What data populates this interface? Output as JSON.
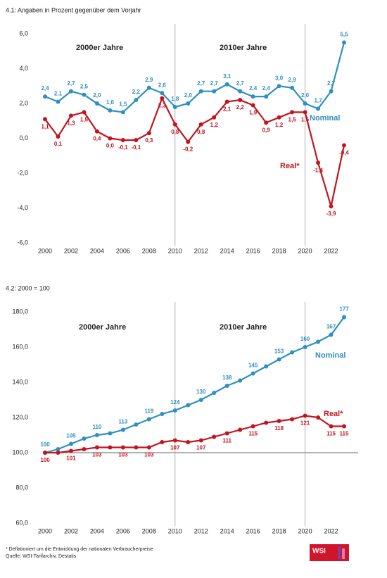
{
  "chart_data": [
    {
      "type": "line",
      "title": "4.1: Angaben in Prozent gegenüber dem Vorjahr",
      "x": [
        2000,
        2001,
        2002,
        2003,
        2004,
        2005,
        2006,
        2007,
        2008,
        2009,
        2010,
        2011,
        2012,
        2013,
        2014,
        2015,
        2016,
        2017,
        2018,
        2019,
        2020,
        2021,
        2022,
        2023
      ],
      "xlim": [
        2000,
        2023
      ],
      "xticks": [
        2000,
        2002,
        2004,
        2006,
        2008,
        2010,
        2012,
        2014,
        2016,
        2018,
        2020,
        2022
      ],
      "ylim": [
        -6,
        6
      ],
      "yticks": [
        {
          "value": -6,
          "label": "-6,0"
        },
        {
          "value": -4,
          "label": "-4,0"
        },
        {
          "value": -2,
          "label": "-2,0"
        },
        {
          "value": 0,
          "label": "0,0"
        },
        {
          "value": 2,
          "label": "2,0"
        },
        {
          "value": 4,
          "label": "4,0"
        },
        {
          "value": 6,
          "label": "6,0"
        }
      ],
      "grid": false,
      "annotations": [
        "2000er Jahre",
        "2010er Jahre",
        "Nominal",
        "Real*"
      ],
      "series": [
        {
          "name": "Nominal",
          "color": "#2e8fc1",
          "values": [
            2.4,
            2.1,
            2.7,
            2.5,
            2.0,
            1.6,
            1.5,
            2.2,
            2.9,
            2.6,
            1.8,
            2.0,
            2.7,
            2.7,
            3.1,
            2.7,
            2.4,
            2.4,
            3.0,
            2.9,
            2.0,
            1.7,
            2.7,
            5.5
          ],
          "value_labels": [
            "2,4",
            "2,1",
            "2,7",
            "2,5",
            "2,0",
            "1,6",
            "1,5",
            "2,2",
            "2,9",
            "2,6",
            "1,8",
            "2,0",
            "2,7",
            "2,7",
            "3,1",
            "2,7",
            "2,4",
            "2,4",
            "3,0",
            "2,9",
            "2,0",
            "1,7",
            "2,7",
            "5,5"
          ]
        },
        {
          "name": "Real*",
          "color": "#c3141e",
          "values": [
            1.1,
            0.1,
            1.3,
            1.5,
            0.4,
            0.0,
            -0.1,
            -0.1,
            0.3,
            2.3,
            0.8,
            -0.2,
            0.8,
            1.2,
            2.1,
            2.2,
            1.9,
            0.9,
            1.2,
            1.5,
            1.5,
            -1.4,
            -3.9,
            -0.4
          ],
          "value_labels": [
            "1,1",
            "0,1",
            "1,3",
            "1,5",
            "0,4",
            "0,0",
            "-0,1",
            "-0,1",
            "0,3",
            "2,3",
            "0,8",
            "-0,2",
            "0,8",
            "1,2",
            "2,1",
            "2,2",
            "1,9",
            "0,9",
            "1,2",
            "1,5",
            "1,5",
            "-1,4",
            "-3,9",
            "-0,4"
          ]
        }
      ]
    },
    {
      "type": "line",
      "title": "4.2: 2000 = 100",
      "x": [
        2000,
        2001,
        2002,
        2003,
        2004,
        2005,
        2006,
        2007,
        2008,
        2009,
        2010,
        2011,
        2012,
        2013,
        2014,
        2015,
        2016,
        2017,
        2018,
        2019,
        2020,
        2021,
        2022,
        2023
      ],
      "xlim": [
        2000,
        2023
      ],
      "xticks": [
        2000,
        2002,
        2004,
        2006,
        2008,
        2010,
        2012,
        2014,
        2016,
        2018,
        2020,
        2022
      ],
      "ylim": [
        60,
        180
      ],
      "yticks": [
        {
          "value": 60,
          "label": "60,0"
        },
        {
          "value": 80,
          "label": "80,0"
        },
        {
          "value": 100,
          "label": "100,0"
        },
        {
          "value": 120,
          "label": "120,0"
        },
        {
          "value": 140,
          "label": "140,0"
        },
        {
          "value": 160,
          "label": "160,0"
        },
        {
          "value": 180,
          "label": "180,0"
        }
      ],
      "grid": false,
      "annotations": [
        "2000er Jahre",
        "2010er Jahre",
        "Nominal",
        "Real*"
      ],
      "series": [
        {
          "name": "Nominal",
          "color": "#2e8fc1",
          "values": [
            100,
            102,
            105,
            108,
            110,
            111,
            113,
            116,
            119,
            122,
            124,
            127,
            130,
            134,
            138,
            141,
            145,
            149,
            153,
            157,
            160,
            163,
            167,
            177
          ],
          "value_labels": [
            "100",
            null,
            "105",
            null,
            "110",
            null,
            "113",
            null,
            "119",
            null,
            "124",
            null,
            "130",
            null,
            "138",
            null,
            "145",
            null,
            "153",
            null,
            "160",
            null,
            "167",
            "177"
          ]
        },
        {
          "name": "Real*",
          "color": "#c3141e",
          "values": [
            100,
            100,
            101,
            102,
            103,
            103,
            103,
            103,
            103,
            106,
            107,
            106,
            107,
            109,
            111,
            113,
            115,
            117,
            118,
            119,
            121,
            120,
            115,
            115
          ],
          "value_labels": [
            "100",
            null,
            "101",
            null,
            "103",
            null,
            "103",
            null,
            "103",
            null,
            "107",
            null,
            "107",
            null,
            "111",
            null,
            "115",
            null,
            "118",
            null,
            "121",
            null,
            "115",
            "115"
          ]
        }
      ]
    }
  ],
  "footnotes": [
    "* Deflationiert um die Entwicklung der nationalen Verbraucherpreise",
    "Quelle: WSI-Tarifarchiv, Destatis"
  ],
  "logo": "WSI"
}
